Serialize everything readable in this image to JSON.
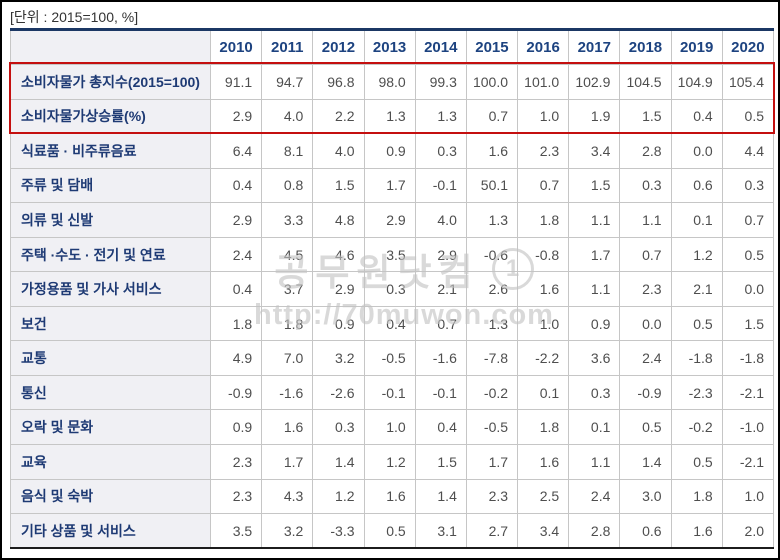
{
  "unit_note": "[단위 : 2015=100, %]",
  "watermark": {
    "brand": "공무원닷컴",
    "logo_icon": "circled-1-radish-logo",
    "logo_number": "1",
    "url": "http://70muwon.com"
  },
  "colors": {
    "header_text": "#1d4380",
    "label_text": "#1e3a74",
    "value_text": "#4e4e4e",
    "label_cell_bg": "#f0f0f4",
    "grid_border": "#c6c6c6",
    "table_top_border": "#1b3764",
    "table_bottom_border": "#1c1c1c",
    "highlight_border": "#c40f0f",
    "watermark_gray": "#c3c3c3"
  },
  "chart_data": {
    "type": "table",
    "unit_label": "[단위 : 2015=100, %]",
    "columns": [
      "",
      "2010",
      "2011",
      "2012",
      "2013",
      "2014",
      "2015",
      "2016",
      "2017",
      "2018",
      "2019",
      "2020"
    ],
    "highlighted_row_indexes": [
      0,
      1
    ],
    "rows": [
      {
        "label": "소비자물가 총지수(2015=100)",
        "highlighted": true,
        "values": [
          "91.1",
          "94.7",
          "96.8",
          "98.0",
          "99.3",
          "100.0",
          "101.0",
          "102.9",
          "104.5",
          "104.9",
          "105.4"
        ]
      },
      {
        "label": "소비자물가상승률(%)",
        "highlighted": true,
        "values": [
          "2.9",
          "4.0",
          "2.2",
          "1.3",
          "1.3",
          "0.7",
          "1.0",
          "1.9",
          "1.5",
          "0.4",
          "0.5"
        ]
      },
      {
        "label": "식료품 · 비주류음료",
        "highlighted": false,
        "values": [
          "6.4",
          "8.1",
          "4.0",
          "0.9",
          "0.3",
          "1.6",
          "2.3",
          "3.4",
          "2.8",
          "0.0",
          "4.4"
        ]
      },
      {
        "label": "주류 및 담배",
        "highlighted": false,
        "values": [
          "0.4",
          "0.8",
          "1.5",
          "1.7",
          "-0.1",
          "50.1",
          "0.7",
          "1.5",
          "0.3",
          "0.6",
          "0.3"
        ]
      },
      {
        "label": "의류 및 신발",
        "highlighted": false,
        "values": [
          "2.9",
          "3.3",
          "4.8",
          "2.9",
          "4.0",
          "1.3",
          "1.8",
          "1.1",
          "1.1",
          "0.1",
          "0.7"
        ]
      },
      {
        "label": "주택 ·수도 · 전기 및 연료",
        "highlighted": false,
        "values": [
          "2.4",
          "4.5",
          "4.6",
          "3.5",
          "2.9",
          "-0.6",
          "-0.8",
          "1.7",
          "0.7",
          "1.2",
          "0.5"
        ]
      },
      {
        "label": "가정용품 및 가사 서비스",
        "highlighted": false,
        "values": [
          "0.4",
          "3.7",
          "2.9",
          "0.3",
          "2.1",
          "2.6",
          "1.6",
          "1.1",
          "2.3",
          "2.1",
          "0.0"
        ]
      },
      {
        "label": "보건",
        "highlighted": false,
        "values": [
          "1.8",
          "1.8",
          "0.9",
          "0.4",
          "0.7",
          "1.3",
          "1.0",
          "0.9",
          "0.0",
          "0.5",
          "1.5"
        ]
      },
      {
        "label": "교통",
        "highlighted": false,
        "values": [
          "4.9",
          "7.0",
          "3.2",
          "-0.5",
          "-1.6",
          "-7.8",
          "-2.2",
          "3.6",
          "2.4",
          "-1.8",
          "-1.8"
        ]
      },
      {
        "label": "통신",
        "highlighted": false,
        "values": [
          "-0.9",
          "-1.6",
          "-2.6",
          "-0.1",
          "-0.1",
          "-0.2",
          "0.1",
          "0.3",
          "-0.9",
          "-2.3",
          "-2.1"
        ]
      },
      {
        "label": "오락 및 문화",
        "highlighted": false,
        "values": [
          "0.9",
          "1.6",
          "0.3",
          "1.0",
          "0.4",
          "-0.5",
          "1.8",
          "0.1",
          "0.5",
          "-0.2",
          "-1.0"
        ]
      },
      {
        "label": "교육",
        "highlighted": false,
        "values": [
          "2.3",
          "1.7",
          "1.4",
          "1.2",
          "1.5",
          "1.7",
          "1.6",
          "1.1",
          "1.4",
          "0.5",
          "-2.1"
        ]
      },
      {
        "label": "음식 및 숙박",
        "highlighted": false,
        "values": [
          "2.3",
          "4.3",
          "1.2",
          "1.6",
          "1.4",
          "2.3",
          "2.5",
          "2.4",
          "3.0",
          "1.8",
          "1.0"
        ]
      },
      {
        "label": "기타 상품 및 서비스",
        "highlighted": false,
        "values": [
          "3.5",
          "3.2",
          "-3.3",
          "0.5",
          "3.1",
          "2.7",
          "3.4",
          "2.8",
          "0.6",
          "1.6",
          "2.0"
        ]
      }
    ]
  }
}
